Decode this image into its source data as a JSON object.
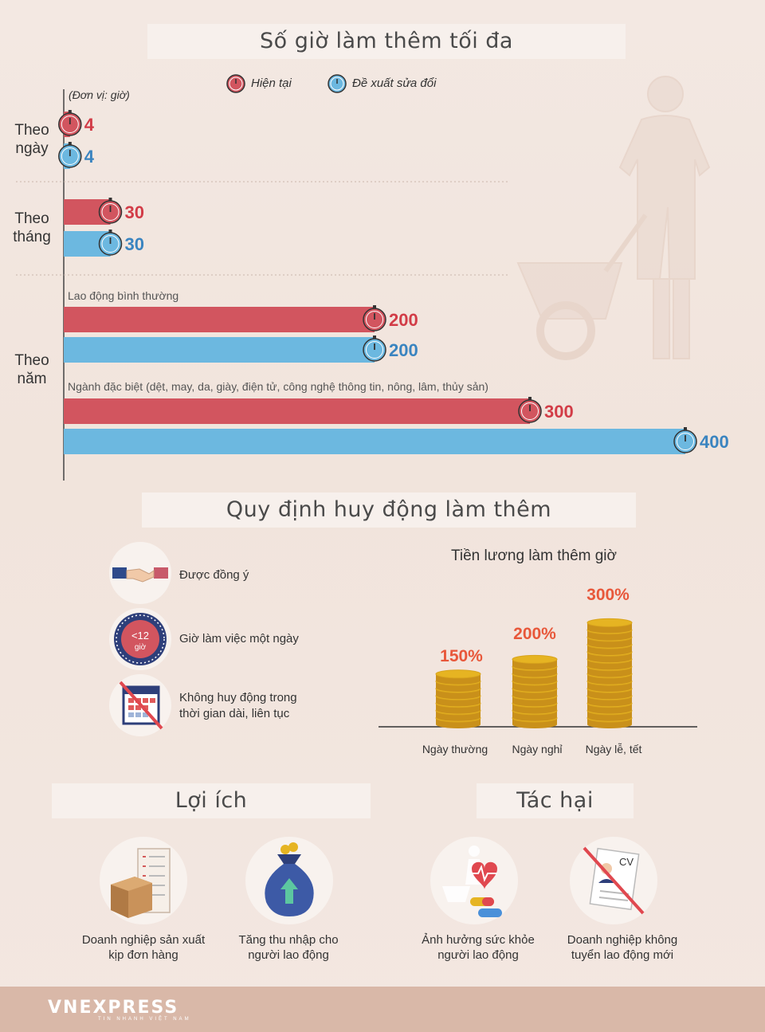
{
  "colors": {
    "current": "#d2555f",
    "proposed": "#6cb8e0",
    "current_text": "#d23c47",
    "proposed_text": "#3a84c0",
    "coin": "#e6b422",
    "accent": "#e8573a",
    "footer": "#d9b8a8"
  },
  "section1": {
    "title": "Số giờ làm thêm tối đa"
  },
  "legend": {
    "current": "Hiện tại",
    "proposed": "Đề xuất sửa đổi"
  },
  "chart_data": [
    {
      "type": "bar",
      "title": "Số giờ làm thêm tối đa",
      "unit_note": "(Đơn vị: giờ)",
      "orientation": "horizontal",
      "legend_placement": "top",
      "categories": [
        "Theo ngày",
        "Theo tháng",
        "Theo năm - Lao động bình thường",
        "Theo năm - Ngành đặc biệt"
      ],
      "series": [
        {
          "name": "Hiện tại",
          "values": [
            4,
            30,
            200,
            300
          ]
        },
        {
          "name": "Đề xuất sửa đổi",
          "values": [
            4,
            30,
            200,
            400
          ]
        }
      ],
      "value_labels": {
        "current": [
          "4",
          "30",
          "200",
          "300"
        ],
        "proposed": [
          "4",
          "30",
          "200",
          "400"
        ]
      },
      "group_labels": [
        {
          "line1": "Theo",
          "line2": "ngày"
        },
        {
          "line1": "Theo",
          "line2": "tháng"
        },
        {
          "line1": "Theo",
          "line2": "năm"
        }
      ],
      "sub_labels": [
        "Lao động bình thường",
        "Ngành đặc biệt (dệt, may, da, giày, điện tử, công nghệ thông tin, nông, lâm, thủy sản)"
      ],
      "grid": false
    },
    {
      "type": "bar",
      "title": "Tiền lương làm thêm giờ",
      "categories": [
        "Ngày thường",
        "Ngày nghỉ",
        "Ngày lễ, tết"
      ],
      "values": [
        150,
        200,
        300
      ],
      "value_labels": [
        "150%",
        "200%",
        "300%"
      ],
      "unit": "%"
    }
  ],
  "section2": {
    "title": "Quy định huy động làm thêm",
    "rules": [
      {
        "text": "Được đồng ý",
        "icon": "handshake-icon"
      },
      {
        "text": "Giờ làm việc một ngày",
        "icon": "clock-limit-icon",
        "badge_top": "<12",
        "badge_bottom": "giờ"
      },
      {
        "text_line1": "Không huy động trong",
        "text_line2": "thời gian dài, liên tục",
        "icon": "crossed-calendar-icon"
      }
    ]
  },
  "benefits": {
    "title": "Lợi ích",
    "items": [
      {
        "line1": "Doanh nghiệp sản xuất",
        "line2": "kịp đơn hàng",
        "icon": "boxes-checklist-icon"
      },
      {
        "line1": "Tăng thu nhập cho",
        "line2": "người lao động",
        "icon": "money-bag-icon"
      }
    ]
  },
  "harms": {
    "title": "Tác hại",
    "items": [
      {
        "line1": "Ảnh hưởng sức khỏe",
        "line2": "người lao động",
        "icon": "health-heart-icon"
      },
      {
        "line1": "Doanh nghiệp không",
        "line2": "tuyển lao động mới",
        "icon": "crossed-cv-icon",
        "cv_label": "CV"
      }
    ]
  },
  "footer": {
    "logo": "VNEXPRESS",
    "tagline": "TIN NHANH VIỆT NAM"
  }
}
